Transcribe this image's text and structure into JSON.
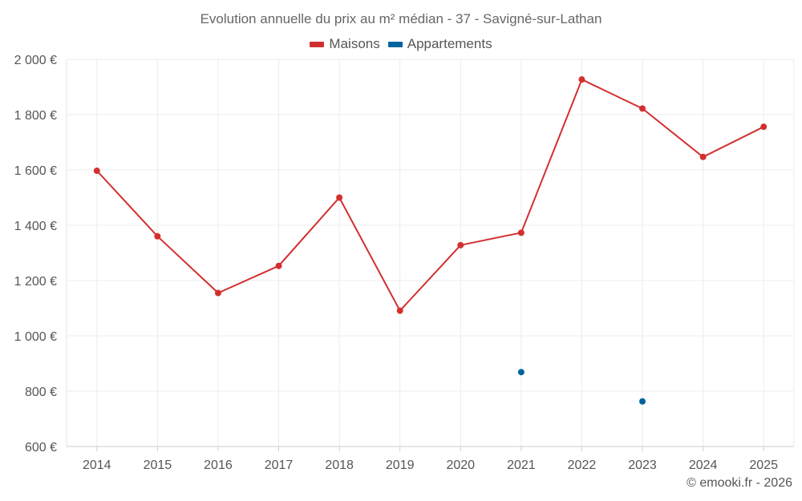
{
  "chart_data": {
    "type": "line",
    "title": "Evolution annuelle du prix au m² médian - 37 - Savigné-sur-Lathan",
    "categories": [
      "2014",
      "2015",
      "2016",
      "2017",
      "2018",
      "2019",
      "2020",
      "2021",
      "2022",
      "2023",
      "2024",
      "2025"
    ],
    "series": [
      {
        "name": "Maisons",
        "color": "#d32f2f",
        "values": [
          1597,
          1360,
          1155,
          1253,
          1500,
          1091,
          1328,
          1373,
          1927,
          1822,
          1647,
          1756
        ]
      },
      {
        "name": "Appartements",
        "color": "#00639e",
        "values": [
          null,
          null,
          null,
          null,
          null,
          null,
          null,
          869,
          null,
          763,
          null,
          null
        ]
      }
    ],
    "ylim": [
      600,
      2000
    ],
    "yticks": [
      600,
      800,
      1000,
      1200,
      1400,
      1600,
      1800,
      2000
    ],
    "ytick_labels": [
      "600 €",
      "800 €",
      "1 000 €",
      "1 200 €",
      "1 400 €",
      "1 600 €",
      "1 800 €",
      "2 000 €"
    ],
    "xlabel": "",
    "ylabel": "",
    "grid": true,
    "legend_position": "top-center"
  },
  "credit": "© emooki.fr - 2026"
}
